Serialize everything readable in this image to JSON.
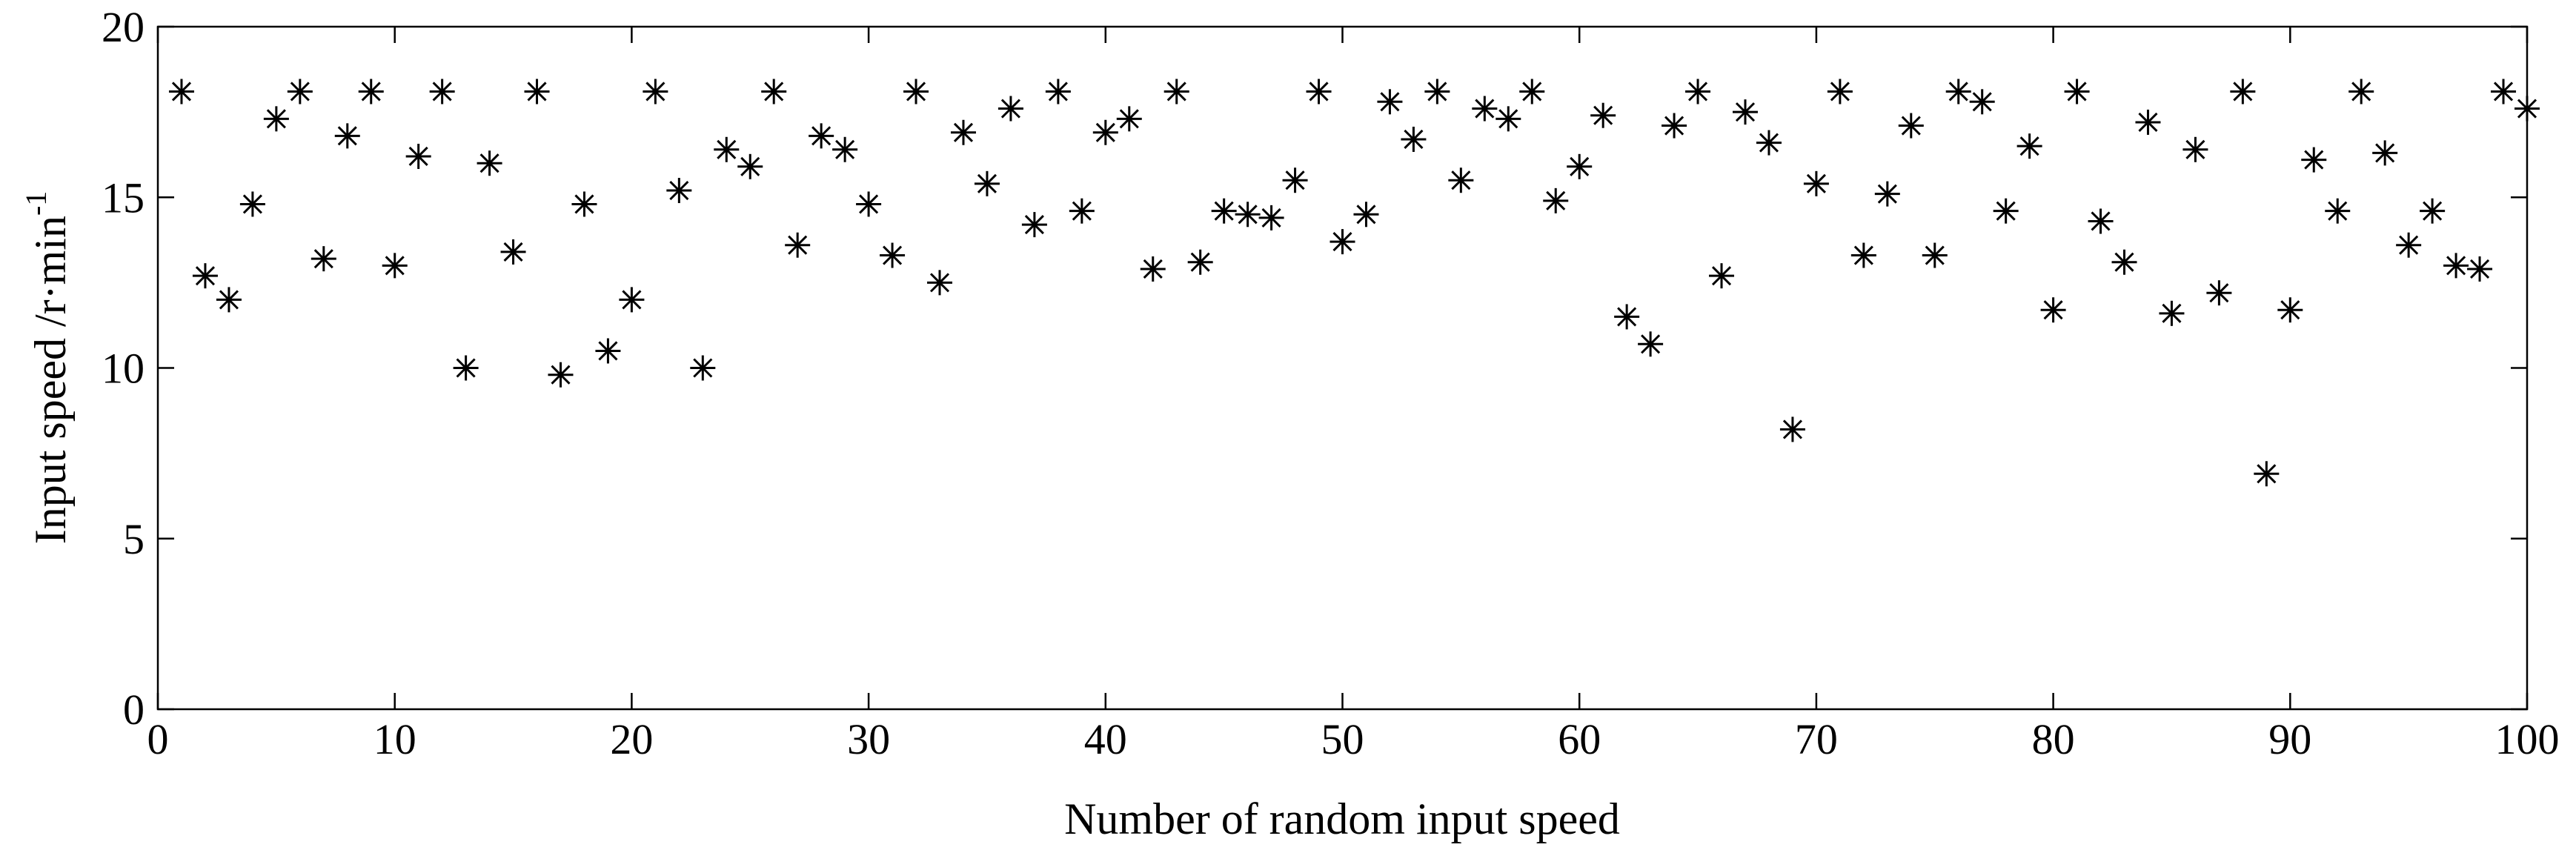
{
  "chart_data": {
    "type": "scatter",
    "marker": "asterisk",
    "xlabel": "Number of random input speed",
    "ylabel": "Input speed /r·min",
    "ylabel_superscript": "-1",
    "xlim": [
      0,
      100
    ],
    "ylim": [
      0,
      20
    ],
    "xticks": [
      "0",
      "10",
      "20",
      "30",
      "40",
      "50",
      "60",
      "70",
      "80",
      "90",
      "100"
    ],
    "yticks": [
      "0",
      "5",
      "10",
      "15",
      "20"
    ],
    "grid": false,
    "colors": {
      "marker": "#000000",
      "axes": "#000000"
    },
    "x": [
      1,
      2,
      3,
      4,
      5,
      6,
      7,
      8,
      9,
      10,
      11,
      12,
      13,
      14,
      15,
      16,
      17,
      18,
      19,
      20,
      21,
      22,
      23,
      24,
      25,
      26,
      27,
      28,
      29,
      30,
      31,
      32,
      33,
      34,
      35,
      36,
      37,
      38,
      39,
      40,
      41,
      42,
      43,
      44,
      45,
      46,
      47,
      48,
      49,
      50,
      51,
      52,
      53,
      54,
      55,
      56,
      57,
      58,
      59,
      60,
      61,
      62,
      63,
      64,
      65,
      66,
      67,
      68,
      69,
      70,
      71,
      72,
      73,
      74,
      75,
      76,
      77,
      78,
      79,
      80,
      81,
      82,
      83,
      84,
      85,
      86,
      87,
      88,
      89,
      90,
      91,
      92,
      93,
      94,
      95,
      96,
      97,
      98,
      99,
      100
    ],
    "y": [
      18.1,
      12.7,
      12.0,
      14.8,
      17.3,
      18.1,
      13.2,
      16.8,
      18.1,
      13.0,
      16.2,
      18.1,
      10.0,
      16.0,
      13.4,
      18.1,
      9.8,
      14.8,
      10.5,
      12.0,
      18.1,
      15.2,
      10.0,
      16.4,
      15.9,
      18.1,
      13.6,
      16.8,
      16.4,
      14.8,
      13.3,
      18.1,
      12.5,
      16.9,
      15.4,
      17.6,
      14.2,
      18.1,
      14.6,
      16.9,
      17.3,
      12.9,
      18.1,
      13.1,
      14.6,
      14.5,
      14.4,
      15.5,
      18.1,
      13.7,
      14.5,
      17.8,
      16.7,
      18.1,
      15.5,
      17.6,
      17.3,
      18.1,
      14.9,
      15.9,
      17.4,
      11.5,
      10.7,
      17.1,
      18.1,
      12.7,
      17.5,
      16.6,
      8.2,
      15.4,
      18.1,
      13.3,
      15.1,
      17.1,
      13.3,
      18.1,
      17.8,
      14.6,
      16.5,
      11.7,
      18.1,
      14.3,
      13.1,
      17.2,
      11.6,
      16.4,
      12.2,
      18.1,
      6.9,
      11.7,
      16.1,
      14.6,
      18.1,
      16.3,
      13.6,
      14.6,
      13.0,
      12.9,
      18.1,
      17.6
    ]
  }
}
